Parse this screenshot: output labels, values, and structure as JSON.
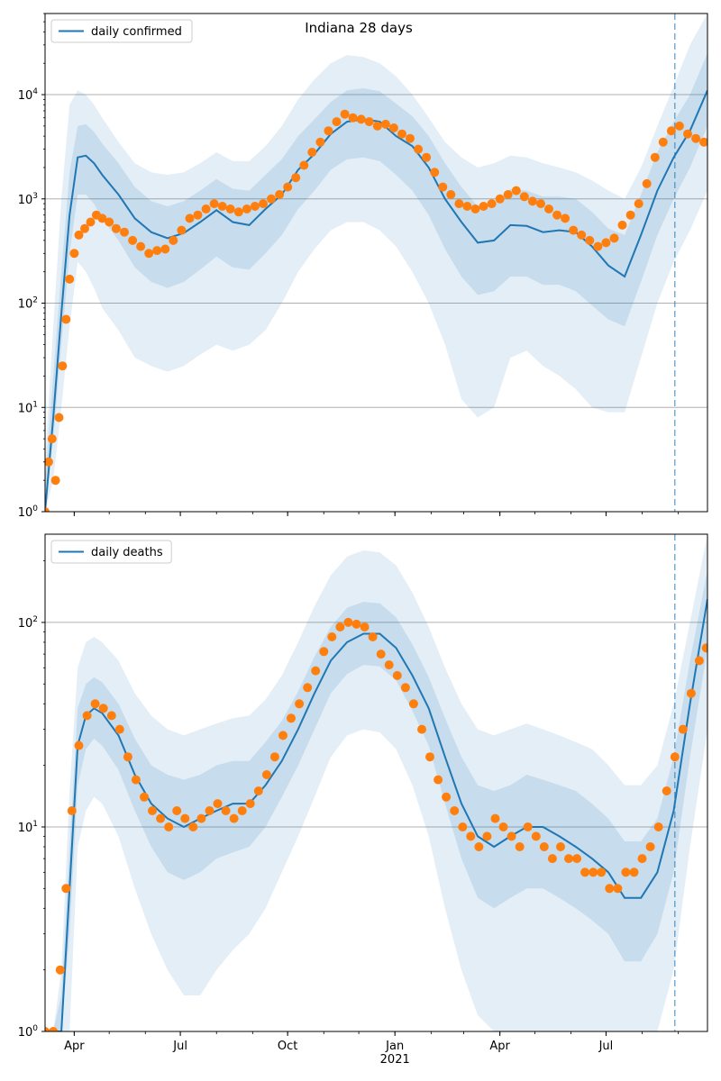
{
  "figure": {
    "title": "Indiana 28 days"
  },
  "colors": {
    "model_line": "#1f77b4",
    "observed_points": "#ff7f0e",
    "band": "#1f77b4",
    "grid": "#b0b0b0",
    "forecast_marker": "#1f77b4"
  },
  "chart_data": [
    {
      "type": "line",
      "name": "daily confirmed",
      "legend": [
        "daily confirmed"
      ],
      "legend_placement": "top-left",
      "yscale": "log",
      "ylim": [
        1,
        60000
      ],
      "xlim": [
        "2020-03-07",
        "2021-09-26"
      ],
      "y_ticks": [
        1,
        10,
        100,
        1000,
        10000
      ],
      "y_tick_labels": [
        "10^0",
        "10^1",
        "10^2",
        "10^3",
        "10^4"
      ],
      "x_ticks": [
        "2020-04-01",
        "2020-07-01",
        "2020-10-01",
        "2021-01-01",
        "2021-04-01",
        "2021-07-01"
      ],
      "x_tick_labels": [],
      "grid": "horizontal major",
      "forecast_start": "2021-08-29",
      "model": {
        "x": [
          "2020-03-07",
          "2020-03-14",
          "2020-03-21",
          "2020-03-28",
          "2020-04-04",
          "2020-04-11",
          "2020-04-18",
          "2020-04-25",
          "2020-05-09",
          "2020-05-23",
          "2020-06-06",
          "2020-06-20",
          "2020-07-04",
          "2020-07-18",
          "2020-08-01",
          "2020-08-15",
          "2020-08-29",
          "2020-09-12",
          "2020-09-26",
          "2020-10-10",
          "2020-10-24",
          "2020-11-07",
          "2020-11-21",
          "2020-12-05",
          "2020-12-19",
          "2021-01-02",
          "2021-01-16",
          "2021-01-30",
          "2021-02-13",
          "2021-02-27",
          "2021-03-13",
          "2021-03-27",
          "2021-04-10",
          "2021-04-24",
          "2021-05-08",
          "2021-05-22",
          "2021-06-05",
          "2021-06-19",
          "2021-07-03",
          "2021-07-17",
          "2021-07-31",
          "2021-08-14",
          "2021-08-28",
          "2021-09-11",
          "2021-09-26"
        ],
        "y": [
          1,
          8,
          80,
          700,
          2500,
          2600,
          2200,
          1700,
          1100,
          650,
          480,
          420,
          470,
          600,
          780,
          600,
          560,
          800,
          1100,
          1900,
          2700,
          4200,
          5500,
          5800,
          5500,
          4000,
          3200,
          2000,
          1000,
          600,
          380,
          400,
          560,
          550,
          480,
          500,
          480,
          350,
          230,
          180,
          450,
          1200,
          2500,
          4500,
          11000
        ],
        "band_low_outer": [
          1,
          2,
          10,
          60,
          250,
          200,
          140,
          90,
          55,
          30,
          25,
          22,
          25,
          32,
          40,
          35,
          40,
          55,
          100,
          200,
          330,
          500,
          600,
          600,
          500,
          350,
          200,
          100,
          40,
          12,
          8,
          10,
          30,
          35,
          25,
          20,
          15,
          10,
          9,
          9,
          30,
          100,
          250,
          500,
          1200
        ],
        "band_high_outer": [
          3,
          60,
          1000,
          8000,
          11000,
          10000,
          8000,
          6000,
          3500,
          2200,
          1800,
          1700,
          1800,
          2200,
          2800,
          2300,
          2300,
          3200,
          5000,
          9000,
          14000,
          20000,
          24000,
          23000,
          20000,
          15000,
          10000,
          6000,
          3500,
          2500,
          2000,
          2200,
          2600,
          2500,
          2200,
          2000,
          1800,
          1500,
          1200,
          1000,
          2000,
          5000,
          12000,
          30000,
          60000
        ],
        "band_low_inner": [
          1,
          5,
          40,
          300,
          1100,
          1100,
          900,
          650,
          400,
          220,
          160,
          140,
          160,
          210,
          280,
          220,
          210,
          300,
          450,
          800,
          1200,
          1900,
          2400,
          2500,
          2300,
          1700,
          1200,
          700,
          330,
          180,
          120,
          130,
          180,
          180,
          150,
          150,
          130,
          95,
          70,
          60,
          160,
          450,
          1000,
          2000,
          5000
        ],
        "band_high_inner": [
          2,
          20,
          200,
          1800,
          5000,
          5200,
          4400,
          3400,
          2200,
          1300,
          950,
          850,
          950,
          1200,
          1550,
          1250,
          1200,
          1700,
          2400,
          4000,
          5800,
          8500,
          11000,
          11500,
          10800,
          8200,
          6200,
          4000,
          2200,
          1300,
          850,
          900,
          1250,
          1200,
          1050,
          1050,
          1000,
          750,
          520,
          450,
          1100,
          2800,
          5500,
          10000,
          25000
        ]
      },
      "observed": {
        "x": [
          "2020-03-07",
          "2020-03-10",
          "2020-03-13",
          "2020-03-16",
          "2020-03-19",
          "2020-03-22",
          "2020-03-25",
          "2020-03-28",
          "2020-04-01",
          "2020-04-05",
          "2020-04-10",
          "2020-04-15",
          "2020-04-20",
          "2020-04-25",
          "2020-05-01",
          "2020-05-07",
          "2020-05-14",
          "2020-05-21",
          "2020-05-28",
          "2020-06-04",
          "2020-06-11",
          "2020-06-18",
          "2020-06-25",
          "2020-07-02",
          "2020-07-09",
          "2020-07-16",
          "2020-07-23",
          "2020-07-30",
          "2020-08-06",
          "2020-08-13",
          "2020-08-20",
          "2020-08-27",
          "2020-09-03",
          "2020-09-10",
          "2020-09-17",
          "2020-09-24",
          "2020-10-01",
          "2020-10-08",
          "2020-10-15",
          "2020-10-22",
          "2020-10-29",
          "2020-11-05",
          "2020-11-12",
          "2020-11-19",
          "2020-11-26",
          "2020-12-03",
          "2020-12-10",
          "2020-12-17",
          "2020-12-24",
          "2020-12-31",
          "2021-01-07",
          "2021-01-14",
          "2021-01-21",
          "2021-01-28",
          "2021-02-04",
          "2021-02-11",
          "2021-02-18",
          "2021-02-25",
          "2021-03-04",
          "2021-03-11",
          "2021-03-18",
          "2021-03-25",
          "2021-04-01",
          "2021-04-08",
          "2021-04-15",
          "2021-04-22",
          "2021-04-29",
          "2021-05-06",
          "2021-05-13",
          "2021-05-20",
          "2021-05-27",
          "2021-06-03",
          "2021-06-10",
          "2021-06-17",
          "2021-06-24",
          "2021-07-01",
          "2021-07-08",
          "2021-07-15",
          "2021-07-22",
          "2021-07-29",
          "2021-08-05",
          "2021-08-12",
          "2021-08-19",
          "2021-08-26",
          "2021-09-02",
          "2021-09-09",
          "2021-09-16",
          "2021-09-23"
        ],
        "y": [
          1,
          3,
          5,
          2,
          8,
          25,
          70,
          170,
          300,
          450,
          520,
          600,
          700,
          650,
          600,
          520,
          480,
          400,
          350,
          300,
          320,
          330,
          400,
          500,
          650,
          700,
          800,
          900,
          850,
          800,
          750,
          800,
          850,
          900,
          1000,
          1100,
          1300,
          1600,
          2100,
          2800,
          3500,
          4500,
          5500,
          6500,
          6000,
          5800,
          5500,
          5000,
          5200,
          4800,
          4200,
          3800,
          3000,
          2500,
          1800,
          1300,
          1100,
          900,
          850,
          800,
          850,
          900,
          1000,
          1100,
          1200,
          1050,
          950,
          900,
          800,
          700,
          650,
          500,
          450,
          400,
          350,
          380,
          420,
          560,
          700,
          900,
          1400,
          2500,
          3500,
          4500,
          5000,
          4200,
          3800,
          3500
        ]
      }
    },
    {
      "type": "line",
      "name": "daily deaths",
      "legend": [
        "daily deaths"
      ],
      "legend_placement": "top-left",
      "yscale": "log",
      "ylim": [
        1,
        270
      ],
      "xlim": [
        "2020-03-07",
        "2021-09-26"
      ],
      "y_ticks": [
        1,
        10,
        100
      ],
      "y_tick_labels": [
        "10^0",
        "10^1",
        "10^2"
      ],
      "x_ticks": [
        "2020-04-01",
        "2020-07-01",
        "2020-10-01",
        "2021-01-01",
        "2021-04-01",
        "2021-07-01"
      ],
      "x_tick_labels": [
        "Apr",
        "Jul",
        "Oct",
        "Jan\n2021",
        "Apr",
        "Jul"
      ],
      "grid": "horizontal major",
      "forecast_start": "2021-08-29",
      "model": {
        "x": [
          "2020-03-07",
          "2020-03-14",
          "2020-03-21",
          "2020-03-28",
          "2020-04-04",
          "2020-04-11",
          "2020-04-18",
          "2020-04-25",
          "2020-05-09",
          "2020-05-23",
          "2020-06-06",
          "2020-06-20",
          "2020-07-04",
          "2020-07-18",
          "2020-08-01",
          "2020-08-15",
          "2020-08-29",
          "2020-09-12",
          "2020-09-26",
          "2020-10-10",
          "2020-10-24",
          "2020-11-07",
          "2020-11-21",
          "2020-12-05",
          "2020-12-19",
          "2021-01-02",
          "2021-01-16",
          "2021-01-30",
          "2021-02-13",
          "2021-02-27",
          "2021-03-13",
          "2021-03-27",
          "2021-04-10",
          "2021-04-24",
          "2021-05-08",
          "2021-05-22",
          "2021-06-05",
          "2021-06-19",
          "2021-07-03",
          "2021-07-17",
          "2021-07-31",
          "2021-08-14",
          "2021-08-28",
          "2021-09-11",
          "2021-09-26"
        ],
        "y": [
          1,
          1,
          1,
          5,
          25,
          35,
          38,
          36,
          28,
          18,
          13,
          11,
          10,
          11,
          12,
          13,
          13,
          16,
          21,
          30,
          45,
          65,
          80,
          88,
          88,
          75,
          55,
          38,
          22,
          13,
          9,
          8,
          9,
          10,
          10,
          9,
          8,
          7,
          6,
          4.5,
          4.5,
          6,
          12,
          40,
          130
        ],
        "band_low_outer": [
          1,
          1,
          1,
          1,
          8,
          12,
          14,
          13,
          9,
          5,
          3,
          2,
          1.5,
          1.5,
          2,
          2.5,
          3,
          4,
          6,
          9,
          14,
          22,
          28,
          30,
          29,
          24,
          16,
          9,
          4,
          2,
          1.2,
          1,
          1,
          1,
          1,
          1,
          1,
          1,
          1,
          1,
          1,
          1,
          2,
          8,
          30
        ],
        "band_high_outer": [
          1,
          1,
          2,
          15,
          60,
          80,
          85,
          80,
          65,
          45,
          35,
          30,
          28,
          30,
          32,
          34,
          35,
          42,
          55,
          80,
          120,
          170,
          210,
          225,
          220,
          190,
          140,
          95,
          60,
          40,
          30,
          28,
          30,
          32,
          30,
          28,
          26,
          24,
          20,
          16,
          16,
          20,
          40,
          100,
          270
        ],
        "band_low_inner": [
          1,
          1,
          1,
          3,
          16,
          24,
          27,
          25,
          19,
          12,
          8,
          6,
          5.5,
          6,
          7,
          7.5,
          8,
          10,
          14,
          20,
          30,
          45,
          56,
          62,
          61,
          52,
          37,
          25,
          13,
          7,
          4.5,
          4,
          4.5,
          5,
          5,
          4.5,
          4,
          3.5,
          3,
          2.2,
          2.2,
          3,
          6,
          22,
          75
        ],
        "band_high_inner": [
          1,
          1,
          1.5,
          8,
          38,
          50,
          54,
          51,
          40,
          27,
          20,
          18,
          17,
          18,
          20,
          21,
          21,
          26,
          33,
          46,
          68,
          95,
          118,
          126,
          124,
          106,
          78,
          54,
          34,
          22,
          16,
          15,
          16,
          18,
          17,
          16,
          15,
          13,
          11,
          8.5,
          8.5,
          11,
          22,
          65,
          180
        ]
      },
      "observed": {
        "x": [
          "2020-03-07",
          "2020-03-14",
          "2020-03-20",
          "2020-03-25",
          "2020-03-30",
          "2020-04-05",
          "2020-04-12",
          "2020-04-19",
          "2020-04-26",
          "2020-05-03",
          "2020-05-10",
          "2020-05-17",
          "2020-05-24",
          "2020-05-31",
          "2020-06-07",
          "2020-06-14",
          "2020-06-21",
          "2020-06-28",
          "2020-07-05",
          "2020-07-12",
          "2020-07-19",
          "2020-07-26",
          "2020-08-02",
          "2020-08-09",
          "2020-08-16",
          "2020-08-23",
          "2020-08-30",
          "2020-09-06",
          "2020-09-13",
          "2020-09-20",
          "2020-09-27",
          "2020-10-04",
          "2020-10-11",
          "2020-10-18",
          "2020-10-25",
          "2020-11-01",
          "2020-11-08",
          "2020-11-15",
          "2020-11-22",
          "2020-11-29",
          "2020-12-06",
          "2020-12-13",
          "2020-12-20",
          "2020-12-27",
          "2021-01-03",
          "2021-01-10",
          "2021-01-17",
          "2021-01-24",
          "2021-01-31",
          "2021-02-07",
          "2021-02-14",
          "2021-02-21",
          "2021-02-28",
          "2021-03-07",
          "2021-03-14",
          "2021-03-21",
          "2021-03-28",
          "2021-04-04",
          "2021-04-11",
          "2021-04-18",
          "2021-04-25",
          "2021-05-02",
          "2021-05-09",
          "2021-05-16",
          "2021-05-23",
          "2021-05-30",
          "2021-06-06",
          "2021-06-13",
          "2021-06-20",
          "2021-06-27",
          "2021-07-04",
          "2021-07-11",
          "2021-07-18",
          "2021-07-25",
          "2021-08-01",
          "2021-08-08",
          "2021-08-15",
          "2021-08-22",
          "2021-08-29",
          "2021-09-05",
          "2021-09-12",
          "2021-09-19",
          "2021-09-25"
        ],
        "y": [
          1,
          1,
          2,
          5,
          12,
          25,
          35,
          40,
          38,
          35,
          30,
          22,
          17,
          14,
          12,
          11,
          10,
          12,
          11,
          10,
          11,
          12,
          13,
          12,
          11,
          12,
          13,
          15,
          18,
          22,
          28,
          34,
          40,
          48,
          58,
          72,
          85,
          95,
          100,
          98,
          95,
          85,
          70,
          62,
          55,
          48,
          40,
          30,
          22,
          17,
          14,
          12,
          10,
          9,
          8,
          9,
          11,
          10,
          9,
          8,
          10,
          9,
          8,
          7,
          8,
          7,
          7,
          6,
          6,
          6,
          5,
          5,
          6,
          6,
          7,
          8,
          10,
          15,
          22,
          30,
          45,
          65,
          75
        ]
      }
    }
  ]
}
